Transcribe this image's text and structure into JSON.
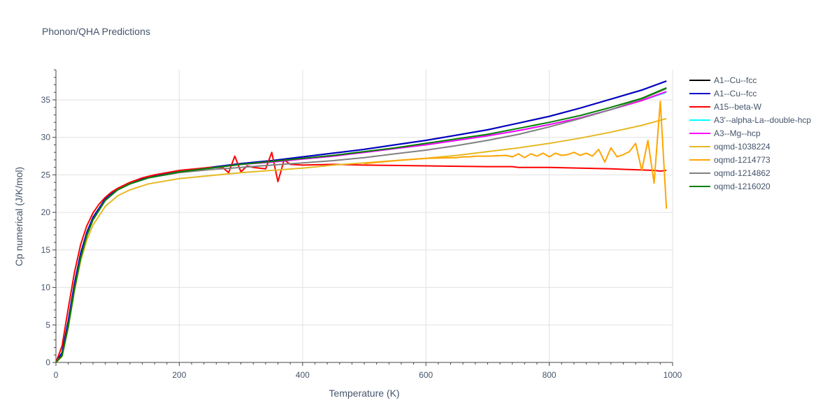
{
  "chart_data": {
    "type": "line",
    "title": "Phonon/QHA Predictions",
    "xlabel": "Temperature (K)",
    "ylabel": "Cp numerical (J/K/mol)",
    "xlim": [
      0,
      1000
    ],
    "ylim": [
      0,
      39
    ],
    "xticks": [
      0,
      200,
      400,
      600,
      800,
      1000
    ],
    "yticks": [
      0,
      5,
      10,
      15,
      20,
      25,
      30,
      35
    ],
    "grid": true,
    "legend_position": "right",
    "series": [
      {
        "name": "A1--Cu--fcc",
        "color": "#000000",
        "x": [
          0,
          10,
          20,
          30,
          40,
          50,
          60,
          80,
          100,
          120,
          150,
          200,
          250,
          300,
          350,
          400,
          450,
          500,
          550,
          600,
          650,
          700,
          750,
          800,
          850,
          900,
          950,
          990
        ],
        "y": [
          0,
          1.3,
          5.5,
          10.5,
          14.5,
          17.3,
          19.3,
          21.8,
          23.1,
          23.9,
          24.7,
          25.5,
          26.0,
          26.5,
          26.9,
          27.4,
          27.9,
          28.4,
          29.0,
          29.6,
          30.3,
          31.0,
          31.9,
          32.8,
          33.9,
          35.1,
          36.3,
          37.5
        ]
      },
      {
        "name": "A1--Cu--fcc",
        "color": "#0000cc",
        "x": [
          0,
          10,
          20,
          30,
          40,
          50,
          60,
          80,
          100,
          120,
          150,
          200,
          250,
          300,
          350,
          400,
          450,
          500,
          550,
          600,
          650,
          700,
          750,
          800,
          850,
          900,
          950,
          990
        ],
        "y": [
          0,
          1.3,
          5.5,
          10.5,
          14.5,
          17.3,
          19.3,
          21.8,
          23.1,
          23.9,
          24.7,
          25.5,
          26.0,
          26.5,
          26.9,
          27.4,
          27.9,
          28.4,
          29.0,
          29.6,
          30.3,
          31.0,
          31.9,
          32.8,
          33.9,
          35.1,
          36.3,
          37.5
        ]
      },
      {
        "name": "A15--beta-W",
        "color": "#ff0000",
        "x": [
          0,
          10,
          20,
          30,
          40,
          50,
          60,
          70,
          80,
          90,
          100,
          120,
          140,
          160,
          180,
          200,
          250,
          270,
          280,
          290,
          300,
          310,
          320,
          340,
          350,
          360,
          365,
          370,
          380,
          400,
          450,
          500,
          600,
          700,
          740,
          750,
          800,
          900,
          970,
          980,
          990
        ],
        "y": [
          0,
          2.2,
          7.2,
          12.0,
          15.7,
          18.2,
          19.9,
          21.1,
          22.0,
          22.7,
          23.2,
          24.0,
          24.6,
          25.0,
          25.3,
          25.6,
          26.0,
          26.0,
          25.3,
          27.5,
          25.4,
          26.2,
          26.0,
          25.8,
          28.0,
          24.1,
          25.5,
          27.0,
          26.4,
          26.3,
          26.4,
          26.3,
          26.2,
          26.1,
          26.1,
          26.0,
          26.0,
          25.8,
          25.6,
          25.5,
          25.6
        ]
      },
      {
        "name": "A3'--alpha-La--double-hcp",
        "color": "#00ffff",
        "x": [
          0,
          10,
          20,
          30,
          40,
          50,
          60,
          80,
          100,
          120,
          150,
          200,
          250,
          300,
          350,
          400,
          450,
          500,
          550,
          600,
          650,
          700,
          750,
          800,
          850,
          900,
          950,
          990
        ],
        "y": [
          0,
          0.9,
          4.8,
          9.8,
          13.9,
          16.9,
          19.0,
          21.6,
          23.0,
          23.8,
          24.6,
          25.4,
          25.9,
          26.4,
          26.7,
          27.1,
          27.5,
          28.0,
          28.5,
          29.0,
          29.6,
          30.2,
          30.9,
          31.7,
          32.6,
          33.7,
          34.9,
          36.0
        ]
      },
      {
        "name": "A3--Mg--hcp",
        "color": "#ff00ff",
        "x": [
          0,
          10,
          20,
          30,
          40,
          50,
          60,
          80,
          100,
          120,
          150,
          200,
          250,
          300,
          350,
          400,
          450,
          500,
          550,
          600,
          650,
          700,
          750,
          800,
          850,
          900,
          950,
          990
        ],
        "y": [
          0,
          0.9,
          4.8,
          9.8,
          13.9,
          16.9,
          19.0,
          21.6,
          23.0,
          23.8,
          24.6,
          25.4,
          25.9,
          26.4,
          26.7,
          27.1,
          27.5,
          28.0,
          28.5,
          29.0,
          29.6,
          30.2,
          30.9,
          31.7,
          32.6,
          33.7,
          34.9,
          36.1
        ]
      },
      {
        "name": "oqmd-1038224",
        "color": "#e6b822",
        "x": [
          0,
          10,
          20,
          30,
          40,
          50,
          60,
          80,
          100,
          120,
          150,
          200,
          250,
          300,
          350,
          400,
          450,
          500,
          550,
          600,
          650,
          700,
          750,
          800,
          850,
          900,
          950,
          990
        ],
        "y": [
          0,
          0.8,
          4.6,
          9.5,
          13.5,
          16.3,
          18.3,
          20.8,
          22.2,
          23.0,
          23.8,
          24.5,
          24.9,
          25.3,
          25.6,
          25.9,
          26.3,
          26.6,
          26.9,
          27.2,
          27.6,
          28.1,
          28.6,
          29.2,
          29.9,
          30.7,
          31.6,
          32.5
        ]
      },
      {
        "name": "oqmd-1214773",
        "color": "#ffa500",
        "x": [
          500,
          550,
          600,
          650,
          660,
          670,
          680,
          700,
          730,
          740,
          750,
          760,
          770,
          780,
          790,
          800,
          810,
          820,
          830,
          840,
          850,
          860,
          870,
          880,
          890,
          900,
          910,
          920,
          930,
          940,
          950,
          960,
          970,
          980,
          990
        ],
        "y": [
          26.5,
          26.9,
          27.2,
          27.3,
          27.4,
          27.4,
          27.5,
          27.5,
          27.6,
          27.4,
          27.8,
          27.3,
          27.8,
          27.5,
          27.9,
          27.4,
          27.9,
          27.6,
          27.7,
          28.0,
          27.6,
          27.9,
          27.5,
          28.4,
          26.7,
          28.6,
          27.4,
          27.7,
          28.1,
          29.2,
          25.6,
          29.6,
          23.9,
          34.8,
          20.5
        ]
      },
      {
        "name": "oqmd-1214862",
        "color": "#808080",
        "x": [
          0,
          10,
          20,
          30,
          40,
          50,
          60,
          80,
          100,
          120,
          150,
          200,
          250,
          300,
          350,
          400,
          450,
          500,
          550,
          600,
          650,
          700,
          750,
          800,
          850,
          900,
          950,
          990
        ],
        "y": [
          0,
          0.9,
          4.8,
          9.8,
          13.9,
          16.9,
          19.0,
          21.6,
          23.0,
          23.8,
          24.6,
          25.3,
          25.7,
          26.0,
          26.3,
          26.6,
          26.9,
          27.3,
          27.8,
          28.3,
          28.9,
          29.6,
          30.4,
          31.4,
          32.5,
          33.7,
          35.1,
          36.5
        ]
      },
      {
        "name": "oqmd-1216020",
        "color": "#008000",
        "x": [
          0,
          10,
          20,
          30,
          40,
          50,
          60,
          80,
          100,
          120,
          150,
          200,
          250,
          300,
          350,
          400,
          450,
          500,
          550,
          600,
          650,
          700,
          750,
          800,
          850,
          900,
          950,
          990
        ],
        "y": [
          0,
          0.9,
          4.8,
          9.8,
          13.9,
          16.9,
          19.0,
          21.6,
          23.0,
          23.8,
          24.6,
          25.4,
          25.9,
          26.4,
          26.8,
          27.2,
          27.6,
          28.1,
          28.6,
          29.2,
          29.8,
          30.4,
          31.2,
          32.0,
          32.9,
          34.0,
          35.2,
          36.6
        ]
      }
    ]
  }
}
